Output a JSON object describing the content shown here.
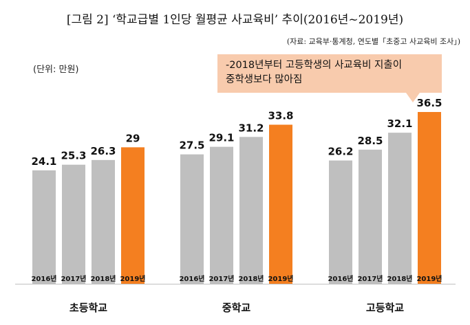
{
  "title": "[그림 2] ‘학교급별 1인당 월평균 사교육비’ 추이(2016년~2019년)",
  "source": "(자료: 교육부·통계청, 연도별「초중고 사교육비 조사」)",
  "unit_label": "(단위: 만원)",
  "callout": {
    "line1": "-2018년부터 고등학생의 사교육비 지출이",
    "line2": "중학생보다 많아짐"
  },
  "colors": {
    "gray": "#bfbfbf",
    "orange": "#f47f20"
  },
  "chart_data": {
    "type": "bar",
    "title": "‘학교급별 1인당 월평균 사교육비’ 추이(2016년~2019년)",
    "unit": "만원",
    "groups": [
      "초등학교",
      "중학교",
      "고등학교"
    ],
    "years": [
      "2016년",
      "2017년",
      "2018년",
      "2019년"
    ],
    "series": [
      {
        "name": "초등학교",
        "values": [
          24.1,
          25.3,
          26.3,
          29
        ],
        "labels": [
          "24.1",
          "25.3",
          "26.3",
          "29"
        ]
      },
      {
        "name": "중학교",
        "values": [
          27.5,
          29.1,
          31.2,
          33.8
        ],
        "labels": [
          "27.5",
          "29.1",
          "31.2",
          "33.8"
        ]
      },
      {
        "name": "고등학교",
        "values": [
          26.2,
          28.5,
          32.1,
          36.5
        ],
        "labels": [
          "26.2",
          "28.5",
          "32.1",
          "36.5"
        ]
      }
    ],
    "highlight_year": "2019년",
    "ylim": [
      0,
      40
    ]
  }
}
